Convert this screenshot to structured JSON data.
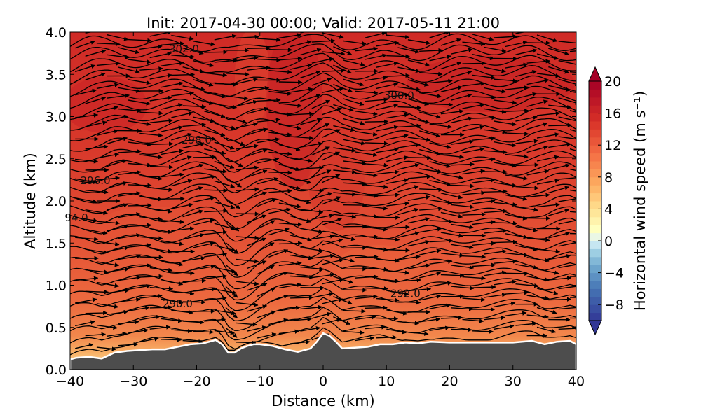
{
  "chart_data": {
    "type": "contour",
    "title": "Init: 2017-04-30 00:00; Valid: 2017-05-11 21:00",
    "xlabel": "Distance (km)",
    "ylabel": "Altitude (km)",
    "xlim": [
      -40,
      40
    ],
    "ylim": [
      0.0,
      4.0
    ],
    "x_ticks": [
      "−40",
      "−30",
      "−20",
      "−10",
      "0",
      "10",
      "20",
      "30",
      "40"
    ],
    "y_ticks": [
      "0.0",
      "0.5",
      "1.0",
      "1.5",
      "2.0",
      "2.5",
      "3.0",
      "3.5",
      "4.0"
    ],
    "colorbar": {
      "label": "Horizontal wind speed (m s⁻¹)",
      "ticks": [
        "−8",
        "−4",
        "0",
        "4",
        "8",
        "12",
        "16",
        "20"
      ],
      "range": [
        -10,
        20
      ],
      "colormap": "RdYlBu_r",
      "extend": "both"
    },
    "filled_field": "horizontal wind speed, mostly 12-18 m/s aloft, decreasing to 4-10 m/s near the terrain surface",
    "contour_labels": [
      {
        "text": "302.0",
        "x": -22,
        "y": 3.8
      },
      {
        "text": "300.0",
        "x": 12,
        "y": 3.25
      },
      {
        "text": "298.0",
        "x": -20,
        "y": 2.72
      },
      {
        "text": "296.0",
        "x": -36,
        "y": 2.24
      },
      {
        "text": "94.0",
        "x": -39,
        "y": 1.8
      },
      {
        "text": "292.0",
        "x": 13,
        "y": 0.9
      },
      {
        "text": "290.0",
        "x": -23,
        "y": 0.78
      }
    ],
    "terrain": {
      "x": [
        -40,
        -39,
        -37,
        -35,
        -33,
        -31,
        -29,
        -27,
        -25,
        -23,
        -21,
        -19,
        -17,
        -16,
        -15,
        -14,
        -13,
        -12,
        -11,
        -10,
        -8,
        -6,
        -4,
        -2,
        -1,
        0,
        1,
        2,
        3,
        5,
        7,
        9,
        11,
        13,
        15,
        17,
        20,
        25,
        30,
        33,
        35,
        37,
        39,
        40
      ],
      "y": [
        0.12,
        0.14,
        0.15,
        0.13,
        0.2,
        0.22,
        0.23,
        0.24,
        0.24,
        0.27,
        0.3,
        0.31,
        0.35,
        0.3,
        0.2,
        0.2,
        0.25,
        0.28,
        0.3,
        0.3,
        0.28,
        0.24,
        0.21,
        0.25,
        0.33,
        0.43,
        0.4,
        0.33,
        0.25,
        0.26,
        0.27,
        0.3,
        0.3,
        0.32,
        0.31,
        0.33,
        0.32,
        0.32,
        0.32,
        0.34,
        0.3,
        0.33,
        0.34,
        0.3
      ]
    },
    "isentropes": {
      "count": 29,
      "bottom_altitude_km": 0.32,
      "top_altitude_km": 3.87,
      "wave_amplitude_note": "isentropes dip strongly near x = -13 km and oscillate downstream"
    },
    "wind_vectors": "arrows pointing mostly eastward with slight up/down slopes following isentropes"
  }
}
